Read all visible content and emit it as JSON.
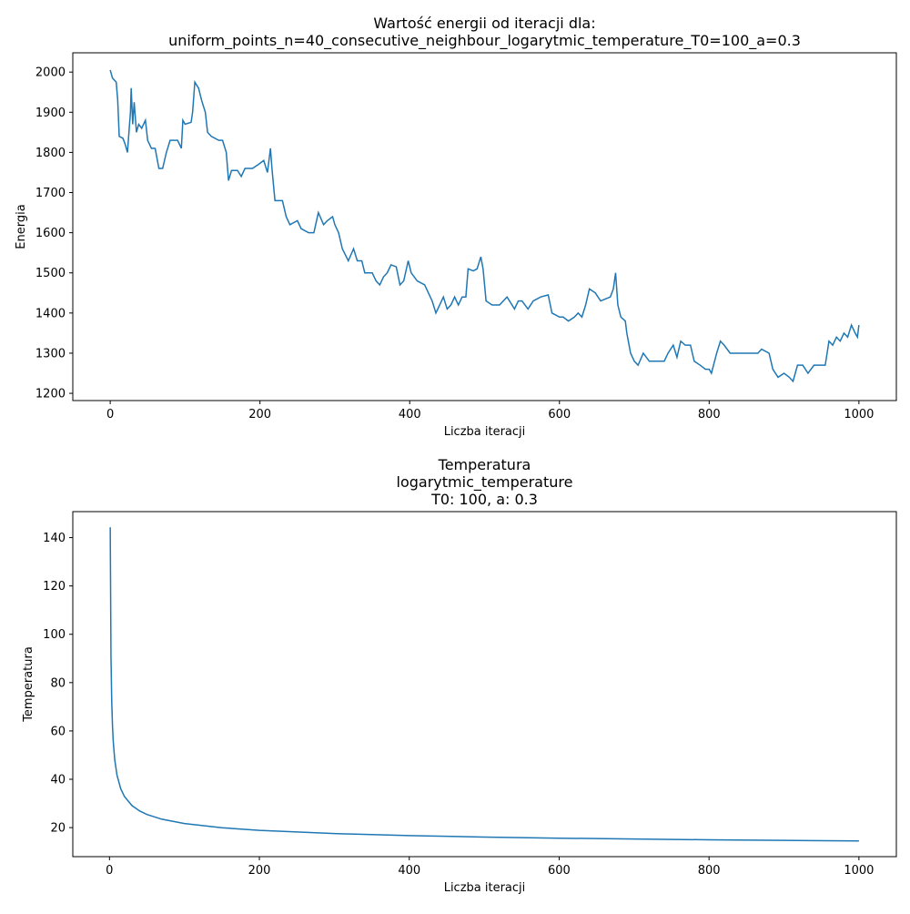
{
  "chart_data": [
    {
      "type": "line",
      "title": [
        "Wartość energii od iteracji dla:",
        "uniform_points_n=40_consecutive_neighbour_logarytmic_temperature_T0=100_a=0.3"
      ],
      "xlabel": "Liczba iteracji",
      "ylabel": "Energia",
      "xlim": [
        -50,
        1050
      ],
      "ylim": [
        1182,
        2048
      ],
      "xticks": [
        0,
        200,
        400,
        600,
        800,
        1000
      ],
      "yticks": [
        1200,
        1300,
        1400,
        1500,
        1600,
        1700,
        1800,
        1900,
        2000
      ],
      "grid": false,
      "series": [
        {
          "name": "Energia",
          "color": "#1f77b4",
          "x": [
            0,
            3,
            8,
            10,
            12,
            17,
            20,
            23,
            25,
            27,
            28,
            30,
            32,
            35,
            38,
            42,
            47,
            50,
            55,
            60,
            65,
            70,
            75,
            80,
            90,
            95,
            97,
            100,
            108,
            110,
            113,
            118,
            122,
            127,
            130,
            135,
            145,
            150,
            155,
            158,
            162,
            170,
            175,
            180,
            190,
            198,
            205,
            210,
            214,
            216,
            220,
            230,
            235,
            240,
            250,
            255,
            265,
            272,
            278,
            285,
            290,
            297,
            300,
            305,
            310,
            318,
            325,
            330,
            336,
            340,
            350,
            355,
            360,
            365,
            370,
            375,
            382,
            387,
            392,
            398,
            402,
            410,
            420,
            425,
            430,
            435,
            440,
            445,
            450,
            455,
            460,
            465,
            470,
            475,
            478,
            485,
            490,
            495,
            498,
            502,
            510,
            520,
            530,
            540,
            545,
            550,
            558,
            565,
            575,
            585,
            590,
            600,
            605,
            612,
            620,
            625,
            630,
            635,
            640,
            648,
            655,
            668,
            672,
            675,
            678,
            682,
            688,
            690,
            695,
            700,
            705,
            712,
            720,
            730,
            740,
            745,
            752,
            757,
            762,
            768,
            775,
            780,
            788,
            795,
            800,
            803,
            810,
            815,
            820,
            828,
            835,
            845,
            855,
            865,
            870,
            880,
            885,
            892,
            900,
            907,
            912,
            918,
            925,
            932,
            940,
            950,
            955,
            960,
            965,
            970,
            975,
            980,
            985,
            990,
            995,
            998,
            1000
          ],
          "values": [
            2005,
            1985,
            1975,
            1930,
            1840,
            1835,
            1820,
            1800,
            1850,
            1900,
            1960,
            1870,
            1925,
            1850,
            1870,
            1860,
            1880,
            1830,
            1810,
            1810,
            1760,
            1760,
            1800,
            1830,
            1830,
            1810,
            1880,
            1870,
            1875,
            1900,
            1975,
            1960,
            1930,
            1900,
            1850,
            1840,
            1830,
            1830,
            1800,
            1730,
            1755,
            1755,
            1740,
            1760,
            1760,
            1770,
            1780,
            1750,
            1810,
            1760,
            1680,
            1680,
            1640,
            1620,
            1630,
            1610,
            1600,
            1600,
            1650,
            1620,
            1630,
            1640,
            1620,
            1600,
            1560,
            1530,
            1560,
            1530,
            1530,
            1500,
            1500,
            1480,
            1470,
            1490,
            1500,
            1520,
            1515,
            1470,
            1480,
            1530,
            1500,
            1480,
            1470,
            1450,
            1430,
            1400,
            1420,
            1440,
            1410,
            1420,
            1440,
            1420,
            1440,
            1440,
            1510,
            1505,
            1510,
            1540,
            1510,
            1430,
            1420,
            1420,
            1440,
            1410,
            1430,
            1430,
            1410,
            1430,
            1440,
            1445,
            1400,
            1390,
            1390,
            1380,
            1390,
            1400,
            1390,
            1420,
            1460,
            1450,
            1430,
            1440,
            1460,
            1500,
            1420,
            1390,
            1380,
            1350,
            1300,
            1280,
            1270,
            1300,
            1280,
            1280,
            1280,
            1300,
            1320,
            1290,
            1330,
            1320,
            1320,
            1280,
            1270,
            1260,
            1260,
            1250,
            1300,
            1330,
            1320,
            1300,
            1300,
            1300,
            1300,
            1300,
            1310,
            1300,
            1260,
            1240,
            1250,
            1240,
            1230,
            1270,
            1270,
            1250,
            1270,
            1270,
            1270,
            1330,
            1320,
            1340,
            1330,
            1350,
            1340,
            1370,
            1350,
            1340,
            1370
          ]
        }
      ]
    },
    {
      "type": "line",
      "title": [
        "Temperatura",
        "logarytmic_temperature",
        "T0: 100, a: 0.3"
      ],
      "xlabel": "Liczba iteracji",
      "ylabel": "Temperatura",
      "xlim": [
        -48.95,
        1049.95
      ],
      "ylim": [
        7.98,
        150.76
      ],
      "xticks": [
        0,
        200,
        400,
        600,
        800,
        1000
      ],
      "yticks": [
        20,
        40,
        60,
        80,
        100,
        120,
        140
      ],
      "grid": false,
      "series": [
        {
          "name": "Temperatura",
          "color": "#1f77b4",
          "x": [
            1,
            2,
            3,
            4,
            5,
            7,
            10,
            15,
            20,
            30,
            40,
            50,
            70,
            100,
            150,
            200,
            300,
            400,
            500,
            600,
            700,
            800,
            900,
            1000
          ],
          "values": [
            144.27,
            91.02,
            72.13,
            62.13,
            55.81,
            48.09,
            41.7,
            36.07,
            32.85,
            29.12,
            26.93,
            25.43,
            23.46,
            21.67,
            19.93,
            18.86,
            17.52,
            16.68,
            16.09,
            15.63,
            15.26,
            14.96,
            14.7,
            14.47
          ]
        }
      ]
    }
  ]
}
